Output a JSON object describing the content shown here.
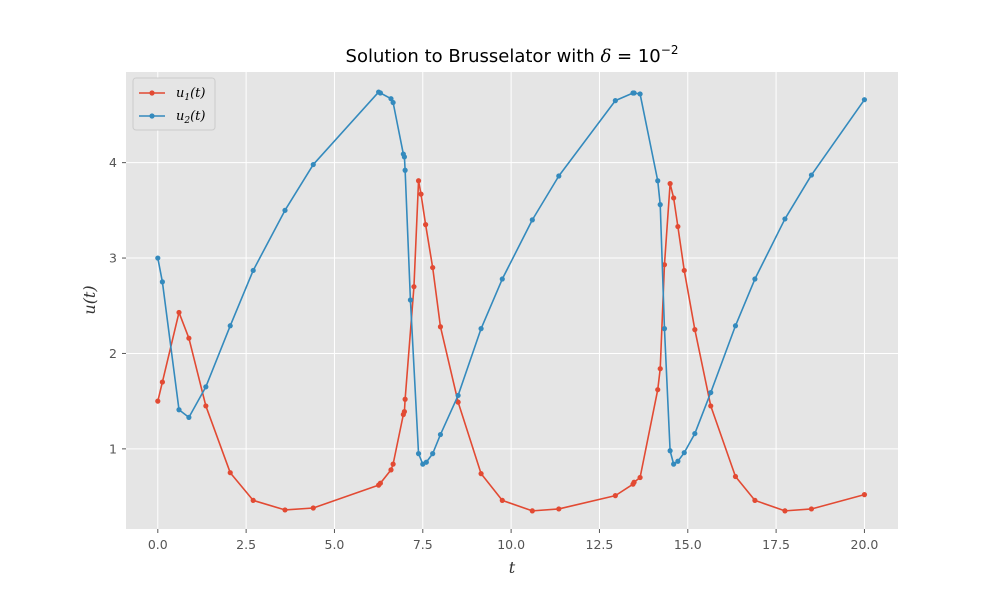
{
  "chart_data": {
    "type": "line",
    "title": "Solution to Brusselator with δ = 10⁻²",
    "title_parts": {
      "lead": "Solution to Brusselator with ",
      "delta": "δ",
      "equals": " = 10",
      "exponent": "−2"
    },
    "xlabel": "t",
    "ylabel": "u(t)",
    "xlim": [
      -0.9,
      20.95
    ],
    "ylim": [
      0.16,
      4.95
    ],
    "xticks": [
      0.0,
      2.5,
      5.0,
      7.5,
      10.0,
      12.5,
      15.0,
      17.5,
      20.0
    ],
    "xtick_labels": [
      "0.0",
      "2.5",
      "5.0",
      "7.5",
      "10.0",
      "12.5",
      "15.0",
      "17.5",
      "20.0"
    ],
    "yticks": [
      1,
      2,
      3,
      4
    ],
    "ytick_labels": [
      "1",
      "2",
      "3",
      "4"
    ],
    "grid": true,
    "legend_position": "top-left",
    "legend_labels": [
      {
        "main": "u",
        "sub": "1",
        "tail": "(t)"
      },
      {
        "main": "u",
        "sub": "2",
        "tail": "(t)"
      }
    ],
    "series": [
      {
        "name": "u1(t)",
        "color": "#E24A33",
        "points": [
          [
            0.0,
            1.5
          ],
          [
            0.13,
            1.7
          ],
          [
            0.6,
            2.43
          ],
          [
            0.88,
            2.16
          ],
          [
            1.36,
            1.45
          ],
          [
            2.05,
            0.75
          ],
          [
            2.7,
            0.46
          ],
          [
            3.6,
            0.36
          ],
          [
            4.4,
            0.38
          ],
          [
            6.25,
            0.62
          ],
          [
            6.3,
            0.64
          ],
          [
            6.6,
            0.78
          ],
          [
            6.66,
            0.84
          ],
          [
            6.95,
            1.36
          ],
          [
            6.98,
            1.39
          ],
          [
            7.0,
            1.52
          ],
          [
            7.25,
            2.7
          ],
          [
            7.38,
            3.81
          ],
          [
            7.45,
            3.67
          ],
          [
            7.58,
            3.35
          ],
          [
            7.78,
            2.9
          ],
          [
            8.0,
            2.28
          ],
          [
            8.5,
            1.49
          ],
          [
            9.15,
            0.74
          ],
          [
            9.75,
            0.46
          ],
          [
            10.6,
            0.35
          ],
          [
            11.35,
            0.37
          ],
          [
            12.95,
            0.51
          ],
          [
            13.45,
            0.63
          ],
          [
            13.48,
            0.65
          ],
          [
            13.65,
            0.7
          ],
          [
            14.15,
            1.62
          ],
          [
            14.22,
            1.84
          ],
          [
            14.34,
            2.93
          ],
          [
            14.5,
            3.78
          ],
          [
            14.6,
            3.63
          ],
          [
            14.72,
            3.33
          ],
          [
            14.9,
            2.87
          ],
          [
            15.2,
            2.25
          ],
          [
            15.65,
            1.45
          ],
          [
            16.35,
            0.71
          ],
          [
            16.9,
            0.46
          ],
          [
            17.75,
            0.35
          ],
          [
            18.5,
            0.37
          ],
          [
            20.0,
            0.52
          ]
        ]
      },
      {
        "name": "u2(t)",
        "color": "#348ABD",
        "points": [
          [
            0.0,
            3.0
          ],
          [
            0.13,
            2.75
          ],
          [
            0.6,
            1.41
          ],
          [
            0.88,
            1.33
          ],
          [
            1.36,
            1.65
          ],
          [
            2.05,
            2.29
          ],
          [
            2.7,
            2.87
          ],
          [
            3.6,
            3.5
          ],
          [
            4.4,
            3.98
          ],
          [
            6.25,
            4.74
          ],
          [
            6.3,
            4.73
          ],
          [
            6.6,
            4.67
          ],
          [
            6.66,
            4.63
          ],
          [
            6.95,
            4.09
          ],
          [
            6.98,
            4.06
          ],
          [
            7.0,
            3.92
          ],
          [
            7.15,
            2.56
          ],
          [
            7.38,
            0.95
          ],
          [
            7.5,
            0.84
          ],
          [
            7.6,
            0.86
          ],
          [
            7.78,
            0.95
          ],
          [
            8.0,
            1.15
          ],
          [
            8.5,
            1.56
          ],
          [
            9.15,
            2.26
          ],
          [
            9.75,
            2.78
          ],
          [
            10.6,
            3.4
          ],
          [
            11.35,
            3.86
          ],
          [
            12.95,
            4.65
          ],
          [
            13.45,
            4.73
          ],
          [
            13.48,
            4.73
          ],
          [
            13.65,
            4.72
          ],
          [
            14.15,
            3.81
          ],
          [
            14.22,
            3.56
          ],
          [
            14.34,
            2.26
          ],
          [
            14.5,
            0.98
          ],
          [
            14.6,
            0.84
          ],
          [
            14.72,
            0.87
          ],
          [
            14.9,
            0.96
          ],
          [
            15.2,
            1.16
          ],
          [
            15.65,
            1.59
          ],
          [
            16.35,
            2.29
          ],
          [
            16.9,
            2.78
          ],
          [
            17.75,
            3.41
          ],
          [
            18.5,
            3.87
          ],
          [
            20.0,
            4.66
          ]
        ]
      }
    ]
  }
}
